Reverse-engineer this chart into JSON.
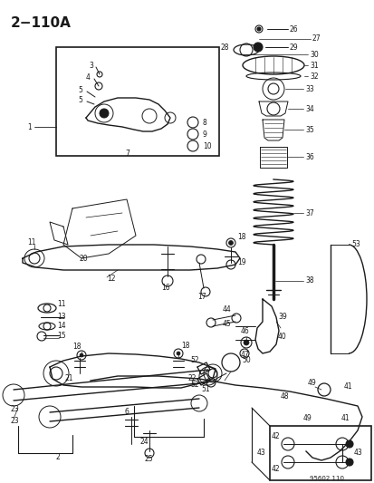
{
  "title": "2−110A",
  "bg_color": "#ffffff",
  "line_color": "#1a1a1a",
  "fig_width": 4.14,
  "fig_height": 5.33,
  "dpi": 100,
  "watermark": "95602 110",
  "gray": "#888888",
  "lightgray": "#cccccc"
}
